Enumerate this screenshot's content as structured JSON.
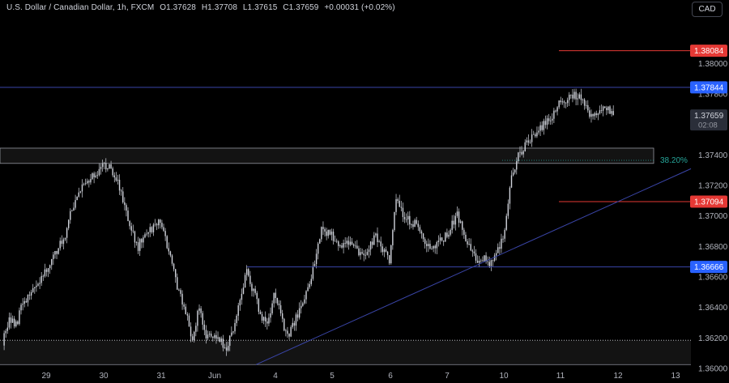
{
  "header": {
    "symbol": "U.S. Dollar / Canadian Dollar, 1h, FXCM",
    "open": "O1.37628",
    "high": "H1.37708",
    "low": "L1.37615",
    "close": "C1.37659",
    "change": "+0.00031 (+0.02%)"
  },
  "currency_button": "CAD",
  "colors": {
    "background": "#000000",
    "candle": "#d1d4dc",
    "support_resistance": "#3a45a8",
    "red_level": "#e53935",
    "grid_text": "#b2b5be",
    "fib": "#26a69a"
  },
  "chart_data": {
    "type": "candlestick",
    "title": "",
    "xlabel": "",
    "ylabel": "",
    "ylim": [
      1.36,
      1.383
    ],
    "y_ticks": [
      "1.38000",
      "1.37800",
      "1.37400",
      "1.37200",
      "1.37000",
      "1.36800",
      "1.36600",
      "1.36400",
      "1.36200",
      "1.36000"
    ],
    "x_ticks": [
      "29",
      "30",
      "31",
      "Jun",
      "4",
      "5",
      "6",
      "7",
      "10",
      "11",
      "12",
      "13"
    ],
    "price_labels": [
      {
        "text": "1.38084",
        "value": 1.38084,
        "color": "#e53935"
      },
      {
        "text": "1.37844",
        "value": 1.37844,
        "color": "#2962ff"
      },
      {
        "text": "1.37659",
        "value": 1.37659,
        "color": "#d1d4dc",
        "sub": "02:08"
      },
      {
        "text": "1.37094",
        "value": 1.37094,
        "color": "#e53935"
      },
      {
        "text": "1.36666",
        "value": 1.36666,
        "color": "#2962ff"
      }
    ],
    "fib_label": "38.20%",
    "levels": {
      "resistance": 1.37844,
      "red_upper": 1.38084,
      "red_lower": 1.37094,
      "support": 1.36666,
      "zone_upper": [
        1.37345,
        1.37445
      ],
      "zone_lower": [
        1.36025,
        1.36185
      ],
      "fib_382": 1.37365
    },
    "trendline": {
      "start": [
        "Jun 3 14:00",
        1.36025
      ],
      "end": [
        "Jun 12 22:00",
        1.3731
      ]
    },
    "path": [
      [
        0,
        1.3618
      ],
      [
        4,
        1.3632
      ],
      [
        8,
        1.3628
      ],
      [
        12,
        1.3644
      ],
      [
        16,
        1.3648
      ],
      [
        20,
        1.3656
      ],
      [
        24,
        1.366
      ],
      [
        28,
        1.367
      ],
      [
        32,
        1.3678
      ],
      [
        36,
        1.3684
      ],
      [
        40,
        1.3702
      ],
      [
        44,
        1.3712
      ],
      [
        48,
        1.372
      ],
      [
        52,
        1.3726
      ],
      [
        56,
        1.3728
      ],
      [
        60,
        1.3734
      ],
      [
        64,
        1.3732
      ],
      [
        68,
        1.3722
      ],
      [
        72,
        1.3705
      ],
      [
        76,
        1.369
      ],
      [
        80,
        1.368
      ],
      [
        84,
        1.369
      ],
      [
        88,
        1.3692
      ],
      [
        92,
        1.3698
      ],
      [
        96,
        1.3686
      ],
      [
        100,
        1.3668
      ],
      [
        104,
        1.365
      ],
      [
        108,
        1.3636
      ],
      [
        112,
        1.362
      ],
      [
        116,
        1.364
      ],
      [
        120,
        1.362
      ],
      [
        124,
        1.3622
      ],
      [
        128,
        1.3618
      ],
      [
        132,
        1.3614
      ],
      [
        136,
        1.3626
      ],
      [
        140,
        1.3644
      ],
      [
        144,
        1.3664
      ],
      [
        148,
        1.365
      ],
      [
        152,
        1.3636
      ],
      [
        156,
        1.3628
      ],
      [
        160,
        1.365
      ],
      [
        164,
        1.3635
      ],
      [
        168,
        1.362
      ],
      [
        172,
        1.363
      ],
      [
        176,
        1.364
      ],
      [
        180,
        1.3652
      ],
      [
        184,
        1.367
      ],
      [
        188,
        1.369
      ],
      [
        192,
        1.3688
      ],
      [
        196,
        1.3686
      ],
      [
        200,
        1.368
      ],
      [
        204,
        1.3684
      ],
      [
        208,
        1.3678
      ],
      [
        212,
        1.3674
      ],
      [
        216,
        1.368
      ],
      [
        220,
        1.3686
      ],
      [
        224,
        1.3678
      ],
      [
        228,
        1.367
      ],
      [
        232,
        1.3712
      ],
      [
        236,
        1.37
      ],
      [
        240,
        1.3696
      ],
      [
        244,
        1.3694
      ],
      [
        248,
        1.3686
      ],
      [
        252,
        1.368
      ],
      [
        256,
        1.368
      ],
      [
        260,
        1.3686
      ],
      [
        264,
        1.3692
      ],
      [
        268,
        1.37
      ],
      [
        272,
        1.3688
      ],
      [
        276,
        1.3676
      ],
      [
        280,
        1.367
      ],
      [
        284,
        1.3672
      ],
      [
        288,
        1.3668
      ],
      [
        292,
        1.3678
      ],
      [
        296,
        1.369
      ],
      [
        300,
        1.3726
      ],
      [
        304,
        1.374
      ],
      [
        308,
        1.3746
      ],
      [
        312,
        1.3752
      ],
      [
        316,
        1.3758
      ],
      [
        320,
        1.376
      ],
      [
        324,
        1.3766
      ],
      [
        328,
        1.3774
      ],
      [
        332,
        1.3776
      ],
      [
        336,
        1.378
      ],
      [
        340,
        1.3778
      ],
      [
        344,
        1.377
      ],
      [
        348,
        1.3766
      ],
      [
        352,
        1.3768
      ],
      [
        356,
        1.377
      ],
      [
        360,
        1.3766
      ]
    ]
  }
}
